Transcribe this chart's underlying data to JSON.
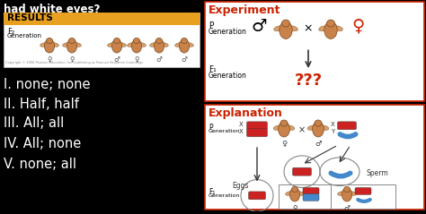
{
  "bg_color": "#000000",
  "title_text": "had white eyes?",
  "results_box_bg": "#ffffff",
  "results_label_bg": "#e8a020",
  "results_label_color": "#000000",
  "results_label_text": "RESULTS",
  "f2_text": "F₂",
  "generation_text": "Generation",
  "options": [
    "I. none; none",
    "II. Half, half",
    "III. All; all",
    "IV. All; none",
    "V. none; all"
  ],
  "text_color": "#ffffff",
  "exp_title": "Experiment",
  "exp_title_color": "#cc2200",
  "exp_border": "#cc2200",
  "exp_bg": "#ffffff",
  "p_gen": "P\nGeneration",
  "f1_gen": "F₁\nGeneration",
  "ques": "???",
  "ques_color": "#cc2200",
  "expl_title": "Explanation",
  "expl_title_color": "#cc2200",
  "expl_border": "#cc2200",
  "expl_bg": "#ffffff",
  "eggs_label": "Eggs",
  "sperm_label": "Sperm",
  "fly_color": "#c8824a",
  "fly_edge": "#7a4a20",
  "chr_red": "#cc2222",
  "chr_blue": "#4488cc",
  "label_color": "#333333",
  "arrow_color": "#333333"
}
